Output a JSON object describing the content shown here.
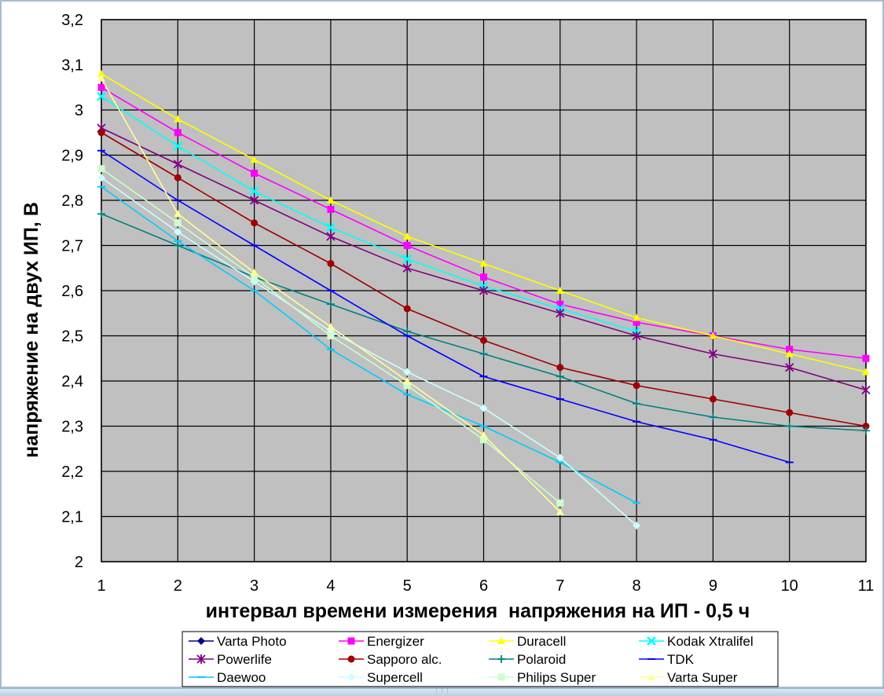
{
  "chart_data": {
    "type": "line",
    "xlabel": "интервал времени измерения  напряжения на ИП - 0,5 ч",
    "ylabel": "напряжение на двух ИП, В",
    "xlim": [
      1,
      11
    ],
    "ylim": [
      2,
      3.2
    ],
    "x_ticks": [
      "1",
      "2",
      "3",
      "4",
      "5",
      "6",
      "7",
      "8",
      "9",
      "10",
      "11"
    ],
    "y_ticks": [
      "2",
      "2,1",
      "2,2",
      "2,3",
      "2,4",
      "2,5",
      "2,6",
      "2,7",
      "2,8",
      "2,9",
      "3",
      "3,1",
      "3,2"
    ],
    "grid": true,
    "legend_position": "bottom",
    "plot_background": "#c0c0c0",
    "series": [
      {
        "name": "Varta Photo",
        "color": "#000080",
        "marker": "diamond",
        "x": [],
        "y": []
      },
      {
        "name": "Energizer",
        "color": "#ff00ff",
        "marker": "square",
        "x": [
          1,
          2,
          3,
          4,
          5,
          6,
          7,
          8,
          9,
          10,
          11
        ],
        "y": [
          3.05,
          2.95,
          2.86,
          2.78,
          2.7,
          2.63,
          2.57,
          2.53,
          2.5,
          2.47,
          2.45
        ]
      },
      {
        "name": "Duracell",
        "color": "#ffff00",
        "marker": "triangle",
        "x": [
          1,
          2,
          3,
          4,
          5,
          6,
          7,
          8,
          9,
          10,
          11
        ],
        "y": [
          3.08,
          2.98,
          2.89,
          2.8,
          2.72,
          2.66,
          2.6,
          2.54,
          2.5,
          2.46,
          2.42
        ]
      },
      {
        "name": "Kodak Xtralifel",
        "color": "#00ffff",
        "marker": "x",
        "x": [
          1,
          2,
          3,
          4,
          5,
          6,
          7,
          8
        ],
        "y": [
          3.03,
          2.92,
          2.82,
          2.74,
          2.67,
          2.61,
          2.56,
          2.51
        ]
      },
      {
        "name": "Powerlife",
        "color": "#800080",
        "marker": "star",
        "x": [
          1,
          2,
          3,
          4,
          5,
          6,
          7,
          8,
          9,
          10,
          11
        ],
        "y": [
          2.96,
          2.88,
          2.8,
          2.72,
          2.65,
          2.6,
          2.55,
          2.5,
          2.46,
          2.43,
          2.38
        ]
      },
      {
        "name": "Sapporo alc.",
        "color": "#a00000",
        "marker": "circle",
        "x": [
          1,
          2,
          3,
          4,
          5,
          6,
          7,
          8,
          9,
          10,
          11
        ],
        "y": [
          2.95,
          2.85,
          2.75,
          2.66,
          2.56,
          2.49,
          2.43,
          2.39,
          2.36,
          2.33,
          2.3
        ]
      },
      {
        "name": "Polaroid",
        "color": "#008080",
        "marker": "plus",
        "x": [
          1,
          2,
          3,
          4,
          5,
          6,
          7,
          8,
          9,
          10,
          11
        ],
        "y": [
          2.77,
          2.7,
          2.63,
          2.57,
          2.51,
          2.46,
          2.41,
          2.35,
          2.32,
          2.3,
          2.29
        ]
      },
      {
        "name": "TDK",
        "color": "#0000ff",
        "marker": "dash",
        "x": [
          1,
          2,
          3,
          4,
          5,
          6,
          7,
          8,
          9,
          10
        ],
        "y": [
          2.91,
          2.8,
          2.7,
          2.6,
          2.5,
          2.41,
          2.36,
          2.31,
          2.27,
          2.22
        ]
      },
      {
        "name": "Daewoo",
        "color": "#00ccff",
        "marker": "dash",
        "x": [
          1,
          2,
          3,
          4,
          5,
          6,
          7,
          8
        ],
        "y": [
          2.83,
          2.71,
          2.6,
          2.47,
          2.37,
          2.3,
          2.22,
          2.13
        ]
      },
      {
        "name": "Supercell",
        "color": "#ccffff",
        "marker": "diamond",
        "x": [
          1,
          2,
          3,
          4,
          5,
          6,
          7,
          8
        ],
        "y": [
          2.85,
          2.73,
          2.62,
          2.51,
          2.42,
          2.34,
          2.23,
          2.08
        ]
      },
      {
        "name": "Philips Super",
        "color": "#ccffcc",
        "marker": "square",
        "x": [
          1,
          2,
          3,
          4,
          5,
          6,
          7
        ],
        "y": [
          2.87,
          2.75,
          2.63,
          2.5,
          2.39,
          2.27,
          2.13
        ]
      },
      {
        "name": "Varta Super",
        "color": "#ffff99",
        "marker": "triangle",
        "x": [
          1,
          2,
          3,
          4,
          5,
          6,
          7
        ],
        "y": [
          3.07,
          2.77,
          2.64,
          2.52,
          2.4,
          2.28,
          2.11
        ]
      }
    ]
  }
}
